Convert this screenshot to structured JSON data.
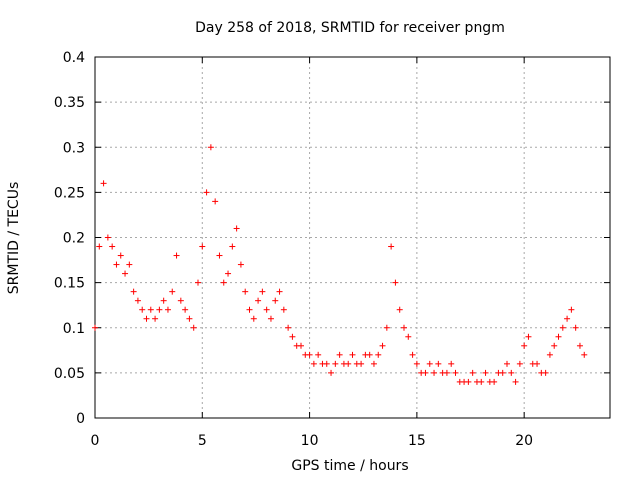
{
  "chart_data": {
    "type": "scatter",
    "title": "Day 258 of 2018, SRMTID for receiver pngm",
    "xlabel": "GPS time / hours",
    "ylabel": "SRMTID / TECUs",
    "xlim": [
      0,
      24
    ],
    "ylim": [
      0,
      0.4
    ],
    "x_ticks": [
      0,
      5,
      10,
      15,
      20
    ],
    "x_tick_labels": [
      "0",
      "5",
      "10",
      "15",
      "20"
    ],
    "y_ticks": [
      0,
      0.05,
      0.1,
      0.15,
      0.2,
      0.25,
      0.3,
      0.35,
      0.4
    ],
    "y_tick_labels": [
      "0",
      "0.05",
      "0.1",
      "0.15",
      "0.2",
      "0.25",
      "0.3",
      "0.35",
      "0.4"
    ],
    "grid": true,
    "marker": "plus",
    "series": [
      {
        "name": "SRMTID",
        "color": "#ff0000",
        "x": [
          0.0,
          0.2,
          0.4,
          0.6,
          0.8,
          1.0,
          1.2,
          1.4,
          1.6,
          1.8,
          2.0,
          2.2,
          2.4,
          2.6,
          2.8,
          3.0,
          3.2,
          3.4,
          3.6,
          3.8,
          4.0,
          4.2,
          4.4,
          4.6,
          4.8,
          5.0,
          5.2,
          5.4,
          5.6,
          5.8,
          6.0,
          6.2,
          6.4,
          6.6,
          6.8,
          7.0,
          7.2,
          7.4,
          7.6,
          7.8,
          8.0,
          8.2,
          8.4,
          8.6,
          8.8,
          9.0,
          9.2,
          9.4,
          9.6,
          9.8,
          10.0,
          10.2,
          10.4,
          10.6,
          10.8,
          11.0,
          11.2,
          11.4,
          11.6,
          11.8,
          12.0,
          12.2,
          12.4,
          12.6,
          12.8,
          13.0,
          13.2,
          13.4,
          13.6,
          13.8,
          14.0,
          14.2,
          14.4,
          14.6,
          14.8,
          15.0,
          15.2,
          15.4,
          15.6,
          15.8,
          16.0,
          16.2,
          16.4,
          16.6,
          16.8,
          17.0,
          17.2,
          17.4,
          17.6,
          17.8,
          18.0,
          18.2,
          18.4,
          18.6,
          18.8,
          19.0,
          19.2,
          19.4,
          19.6,
          19.8,
          20.0,
          20.2,
          20.4,
          20.6,
          20.8,
          21.0,
          21.2,
          21.4,
          21.6,
          21.8,
          22.0,
          22.2,
          22.4,
          22.6,
          22.8
        ],
        "y": [
          0.1,
          0.19,
          0.26,
          0.2,
          0.19,
          0.17,
          0.18,
          0.16,
          0.17,
          0.14,
          0.13,
          0.12,
          0.11,
          0.12,
          0.11,
          0.12,
          0.13,
          0.12,
          0.14,
          0.18,
          0.13,
          0.12,
          0.11,
          0.1,
          0.15,
          0.19,
          0.25,
          0.3,
          0.24,
          0.18,
          0.15,
          0.16,
          0.19,
          0.21,
          0.17,
          0.14,
          0.12,
          0.11,
          0.13,
          0.14,
          0.12,
          0.11,
          0.13,
          0.14,
          0.12,
          0.1,
          0.09,
          0.08,
          0.08,
          0.07,
          0.07,
          0.06,
          0.07,
          0.06,
          0.06,
          0.05,
          0.06,
          0.07,
          0.06,
          0.06,
          0.07,
          0.06,
          0.06,
          0.07,
          0.07,
          0.06,
          0.07,
          0.08,
          0.1,
          0.19,
          0.15,
          0.12,
          0.1,
          0.09,
          0.07,
          0.06,
          0.05,
          0.05,
          0.06,
          0.05,
          0.06,
          0.05,
          0.05,
          0.06,
          0.05,
          0.04,
          0.04,
          0.04,
          0.05,
          0.04,
          0.04,
          0.05,
          0.04,
          0.04,
          0.05,
          0.05,
          0.06,
          0.05,
          0.04,
          0.06,
          0.08,
          0.09,
          0.06,
          0.06,
          0.05,
          0.05,
          0.07,
          0.08,
          0.09,
          0.1,
          0.11,
          0.12,
          0.1,
          0.08,
          0.07
        ]
      }
    ]
  }
}
